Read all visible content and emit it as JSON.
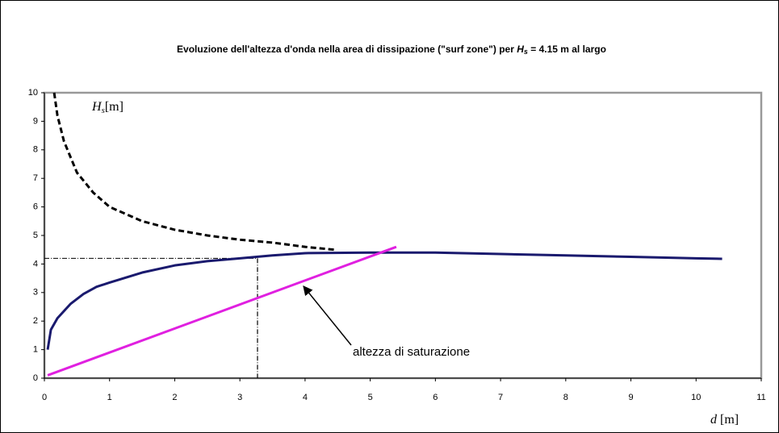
{
  "chart_data": {
    "type": "line",
    "title_prefix": "Evoluzione dell'altezza d'onda nella area di dissipazione (\"surf zone\") per ",
    "title_symbol": "H",
    "title_subscript": "s",
    "title_suffix": " = 4.15 m al largo",
    "y_label_symbol": "H",
    "y_label_subscript": "s",
    "y_label_unit": "[m]",
    "x_label_symbol": "d",
    "x_label_unit": " [m]",
    "annotation": "altezza di saturazione",
    "xlim": [
      0,
      11
    ],
    "ylim": [
      0,
      10
    ],
    "xticks": [
      0,
      1,
      2,
      3,
      4,
      5,
      6,
      7,
      8,
      9,
      10,
      11
    ],
    "yticks": [
      0,
      1,
      2,
      3,
      4,
      5,
      6,
      7,
      8,
      9,
      10
    ],
    "reference": {
      "x": 3.27,
      "y": 4.2
    },
    "series": [
      {
        "color": "#000000",
        "dash": true,
        "x": [
          0.15,
          0.2,
          0.3,
          0.5,
          0.75,
          1,
          1.5,
          2,
          2.5,
          3,
          3.5,
          4,
          4.45
        ],
        "values": [
          10,
          9.2,
          8.3,
          7.2,
          6.5,
          6.0,
          5.5,
          5.2,
          5.0,
          4.85,
          4.75,
          4.6,
          4.5
        ]
      },
      {
        "color": "#1a1a6e",
        "dash": false,
        "x": [
          0.05,
          0.1,
          0.2,
          0.4,
          0.6,
          0.8,
          1,
          1.5,
          2,
          2.5,
          3,
          3.5,
          4,
          5,
          6,
          7,
          8,
          9,
          10,
          10.4
        ],
        "values": [
          1.0,
          1.7,
          2.1,
          2.6,
          2.95,
          3.2,
          3.35,
          3.7,
          3.95,
          4.1,
          4.2,
          4.3,
          4.38,
          4.4,
          4.4,
          4.35,
          4.3,
          4.25,
          4.2,
          4.18
        ]
      },
      {
        "color": "#e020e0",
        "dash": false,
        "x": [
          0.05,
          5.4
        ],
        "values": [
          0.1,
          4.6
        ]
      }
    ]
  }
}
